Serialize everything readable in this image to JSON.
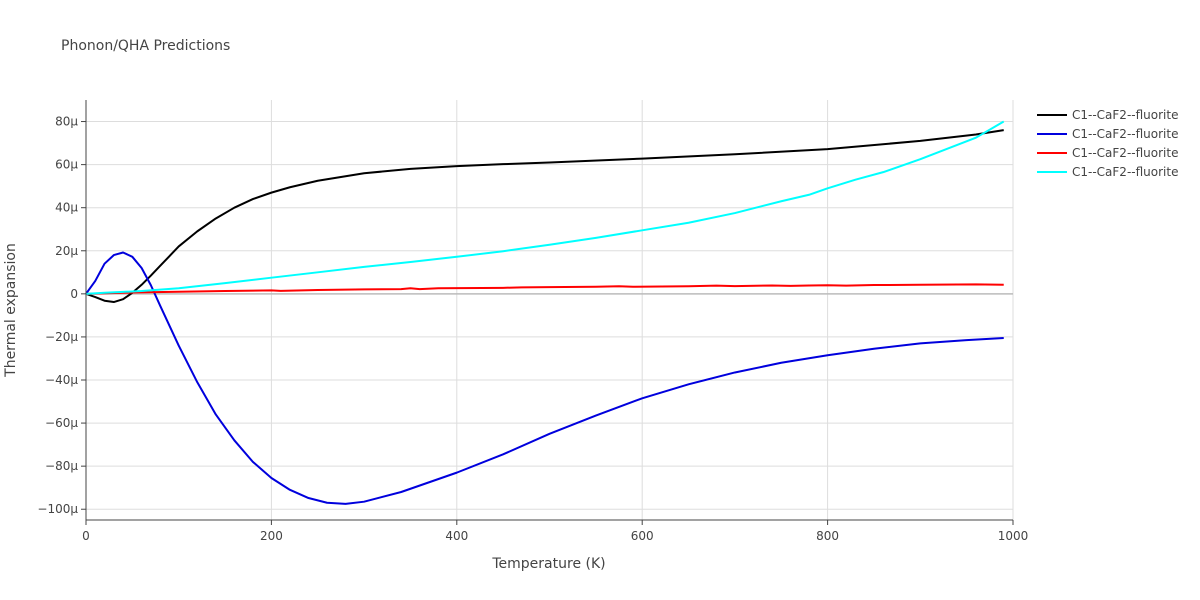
{
  "chart_data": {
    "type": "line",
    "title": "Phonon/QHA Predictions",
    "xlabel": "Temperature (K)",
    "ylabel": "Thermal expansion",
    "xlim": [
      0,
      1000
    ],
    "ylim": [
      -105,
      90
    ],
    "x_ticks": [
      0,
      200,
      400,
      600,
      800,
      1000
    ],
    "x_tick_labels": [
      "0",
      "200",
      "400",
      "600",
      "800",
      "1000"
    ],
    "y_ticks": [
      -100,
      -80,
      -60,
      -40,
      -20,
      0,
      20,
      40,
      60,
      80
    ],
    "y_tick_labels": [
      "−100μ",
      "−80μ",
      "−60μ",
      "−40μ",
      "−20μ",
      "0",
      "20μ",
      "40μ",
      "60μ",
      "80μ"
    ],
    "grid": true,
    "legend_position": "top-right",
    "series": [
      {
        "name": "C1--CaF2--fluorite",
        "color": "#000000",
        "x": [
          0,
          10,
          20,
          30,
          40,
          50,
          60,
          70,
          80,
          90,
          100,
          120,
          140,
          160,
          180,
          200,
          220,
          250,
          300,
          350,
          400,
          450,
          500,
          600,
          700,
          800,
          900,
          960,
          990
        ],
        "y": [
          0,
          -1.5,
          -3.2,
          -3.8,
          -2.5,
          0.5,
          4.2,
          8.5,
          13,
          17.5,
          22,
          29,
          35,
          40,
          44,
          47,
          49.5,
          52.5,
          56,
          58,
          59.3,
          60.2,
          61,
          62.8,
          64.8,
          67.2,
          71,
          74,
          76
        ]
      },
      {
        "name": "C1--CaF2--fluorite",
        "color": "#0000dd",
        "x": [
          0,
          10,
          20,
          30,
          40,
          50,
          60,
          70,
          80,
          100,
          120,
          140,
          160,
          180,
          200,
          220,
          240,
          260,
          280,
          300,
          340,
          400,
          450,
          500,
          550,
          600,
          650,
          700,
          750,
          800,
          850,
          900,
          950,
          990
        ],
        "y": [
          0,
          6,
          14,
          18,
          19.2,
          17.2,
          12,
          4,
          -5.5,
          -24,
          -41,
          -56,
          -68,
          -78,
          -85.5,
          -91,
          -94.8,
          -97,
          -97.5,
          -96.5,
          -92,
          -83,
          -74.5,
          -65,
          -56.5,
          -48.5,
          -42,
          -36.5,
          -32,
          -28.5,
          -25.5,
          -23,
          -21.5,
          -20.5
        ]
      },
      {
        "name": "C1--CaF2--fluorite",
        "color": "#ff0000",
        "x": [
          0,
          50,
          100,
          150,
          200,
          210,
          250,
          300,
          340,
          350,
          360,
          380,
          450,
          470,
          500,
          550,
          575,
          590,
          650,
          680,
          700,
          740,
          760,
          780,
          800,
          820,
          850,
          900,
          960,
          990
        ],
        "y": [
          0,
          0.6,
          1.0,
          1.3,
          1.6,
          1.4,
          1.8,
          2.1,
          2.2,
          2.6,
          2.2,
          2.6,
          2.8,
          3.0,
          3.1,
          3.3,
          3.5,
          3.3,
          3.5,
          3.8,
          3.6,
          3.9,
          3.7,
          3.9,
          4.0,
          3.8,
          4.1,
          4.2,
          4.4,
          4.2
        ]
      },
      {
        "name": "C1--CaF2--fluorite",
        "color": "#00ffff",
        "x": [
          0,
          20,
          40,
          60,
          100,
          150,
          200,
          250,
          300,
          350,
          400,
          450,
          500,
          550,
          600,
          650,
          700,
          750,
          780,
          800,
          830,
          860,
          900,
          930,
          960,
          990
        ],
        "y": [
          0,
          0.5,
          0.9,
          1.3,
          2.6,
          5,
          7.5,
          10,
          12.5,
          14.8,
          17.2,
          19.8,
          22.8,
          26,
          29.5,
          33,
          37.5,
          43,
          46,
          49,
          53,
          56.5,
          62.5,
          67.5,
          72.5,
          80
        ]
      }
    ]
  }
}
